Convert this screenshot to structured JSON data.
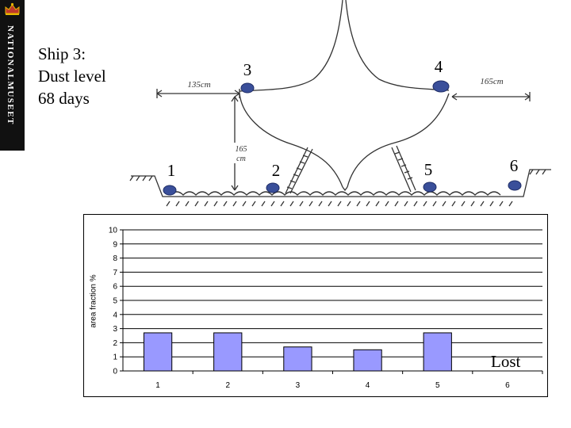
{
  "logo": {
    "text": "NATIONALMUSEET"
  },
  "caption": {
    "line1": "Ship 3:",
    "line2": "Dust level",
    "line3": "68 days"
  },
  "sketch": {
    "positions": [
      "1",
      "2",
      "3",
      "4",
      "5",
      "6"
    ],
    "dim_left": "135cm",
    "dim_right": "165cm",
    "dim_height_1": "165",
    "dim_height_2": "cm"
  },
  "colors": {
    "bar_fill": "#9999ff",
    "sensor": "#3a4f9a"
  },
  "chart_data": {
    "type": "bar",
    "categories": [
      "1",
      "2",
      "3",
      "4",
      "5",
      "6"
    ],
    "values": [
      2.7,
      2.7,
      1.7,
      1.5,
      2.7,
      null
    ],
    "ylabel": "area fraction %",
    "ylim": [
      0,
      10
    ],
    "yticks": [
      "0",
      "1",
      "2",
      "3",
      "4",
      "5",
      "6",
      "7",
      "8",
      "9",
      "10"
    ],
    "grid": true,
    "annotation": "Lost"
  }
}
